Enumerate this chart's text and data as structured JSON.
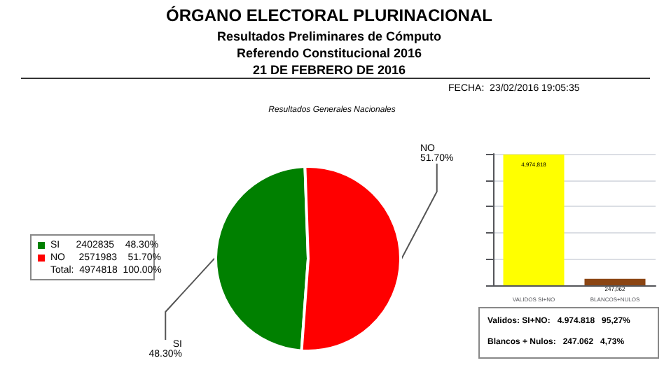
{
  "chart_data": [
    {
      "type": "pie",
      "title": "ÓRGANO ELECTORAL PLURINACIONAL",
      "subtitle": "Resultados Preliminares de Cómputo\nReferendo Constitucional 2016\n21 DE FEBRERO DE 2016",
      "categories": [
        "SI",
        "NO"
      ],
      "values": [
        48.3,
        51.7
      ],
      "colors": [
        "#008000",
        "#ff0000"
      ],
      "value_labels": [
        "48.30%",
        "51.70%"
      ],
      "annotations": [
        "FECHA:  23/02/2016 19:05:35",
        "Resultados Generales Nacionales",
        "SI      2402835    48.30%",
        "NO     2571983    51.70%",
        "Total:  4974818  100.00%"
      ]
    },
    {
      "type": "bar",
      "categories": [
        "VALIDOS SI+NO",
        "BLANCOS+NULOS"
      ],
      "values": [
        4974818,
        247062
      ],
      "colors": [
        "#ffff00",
        "#8b4513"
      ],
      "value_labels": [
        "4,974,818",
        "247,062"
      ],
      "grid": "y",
      "tick_labels": "x",
      "annotations": [
        "Validos: SI+NO:   4.974.818   95,27%",
        "Blancos + Nulos:   247.062   4,73%"
      ]
    }
  ]
}
